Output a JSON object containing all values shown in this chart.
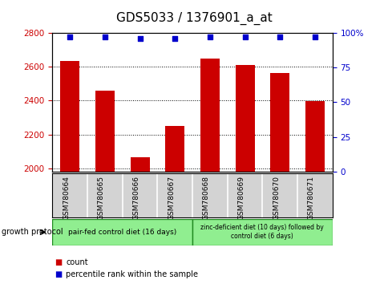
{
  "title": "GDS5033 / 1376901_a_at",
  "categories": [
    "GSM780664",
    "GSM780665",
    "GSM780666",
    "GSM780667",
    "GSM780668",
    "GSM780669",
    "GSM780670",
    "GSM780671"
  ],
  "count_values": [
    2635,
    2460,
    2065,
    2250,
    2645,
    2610,
    2560,
    2395
  ],
  "percentile_values": [
    97,
    97,
    96,
    96,
    97,
    97,
    97,
    97
  ],
  "ylim_left": [
    1980,
    2800
  ],
  "ylim_right": [
    0,
    100
  ],
  "yticks_left": [
    2000,
    2200,
    2400,
    2600,
    2800
  ],
  "yticks_right": [
    0,
    25,
    50,
    75,
    100
  ],
  "ytick_labels_right": [
    "0",
    "25",
    "50",
    "75",
    "100%"
  ],
  "bar_color": "#cc0000",
  "dot_color": "#0000cc",
  "bar_width": 0.55,
  "group1_label": "pair-fed control diet (16 days)",
  "group2_label": "zinc-deficient diet (10 days) followed by\ncontrol diet (6 days)",
  "group1_color": "#90ee90",
  "group2_color": "#90ee90",
  "protocol_label": "growth protocol",
  "legend_count_label": "count",
  "legend_pct_label": "percentile rank within the sample",
  "tick_label_color_left": "#cc0000",
  "tick_label_color_right": "#0000cc",
  "xlabel_area_color": "#d3d3d3",
  "title_fontsize": 11
}
